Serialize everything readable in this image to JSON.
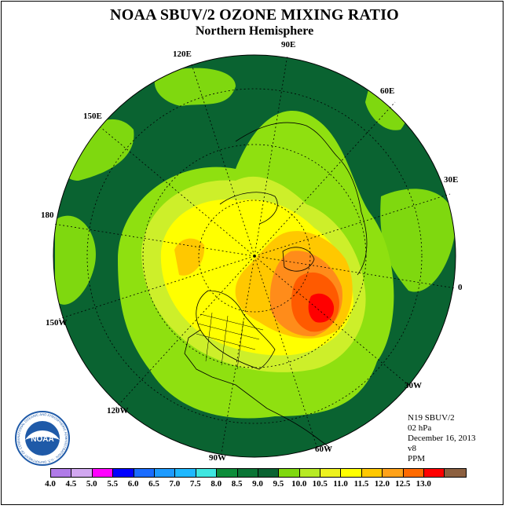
{
  "title": "NOAA SBUV/2 OZONE MIXING RATIO",
  "subtitle": "Northern Hemisphere",
  "longitude_labels": [
    "90E",
    "60E",
    "120E",
    "150E",
    "30E",
    "180",
    "0",
    "150W",
    "30W",
    "120W",
    "60W",
    "90W"
  ],
  "info": {
    "instrument": "N19 SBUV/2",
    "level": "02 hPa",
    "date": "December 16, 2013",
    "version": "v8",
    "units": "PPM"
  },
  "logo": {
    "text": "NOAA",
    "ring_text": "NATIONAL OCEANIC AND ATMOSPHERIC ADMINISTRATION · U.S. DEPARTMENT OF COMMERCE"
  },
  "colorbar": {
    "colors": [
      "#b07be8",
      "#d1a7f0",
      "#ff00ff",
      "#0000ff",
      "#1a6cff",
      "#1e9bff",
      "#1fb8ff",
      "#3fe6e0",
      "#0d8c3a",
      "#0a7535",
      "#0a6331",
      "#7fd80f",
      "#b7ea24",
      "#eef21e",
      "#ffff00",
      "#ffc800",
      "#ffa21a",
      "#ff6a00",
      "#ff0000",
      "#8c6040"
    ],
    "tick_labels": [
      "4.0",
      "4.5",
      "5.0",
      "5.5",
      "6.0",
      "6.5",
      "7.0",
      "7.5",
      "8.0",
      "8.5",
      "9.0",
      "9.5",
      "10.0",
      "10.5",
      "11.0",
      "11.5",
      "12.0",
      "12.5",
      "13.0"
    ]
  }
}
